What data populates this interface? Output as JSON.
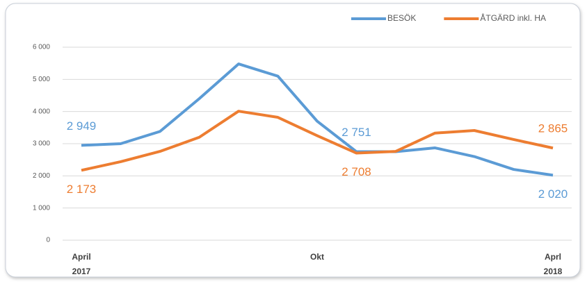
{
  "chart_data": {
    "type": "line",
    "categories": [
      "April",
      null,
      null,
      null,
      null,
      null,
      "Okt",
      null,
      null,
      null,
      null,
      null,
      "Aprl"
    ],
    "category_years": [
      "2017",
      null,
      null,
      null,
      null,
      null,
      null,
      null,
      null,
      null,
      null,
      null,
      "2018"
    ],
    "series": [
      {
        "name": "BESÖK",
        "color": "#5b9bd5",
        "values": [
          2949,
          3000,
          3380,
          4400,
          5480,
          5100,
          3700,
          2751,
          2751,
          2870,
          2600,
          2200,
          2020
        ],
        "value_labels": [
          "2 949",
          null,
          null,
          null,
          null,
          null,
          null,
          "2 751",
          null,
          null,
          null,
          null,
          "2 020"
        ]
      },
      {
        "name": "ÅTGÄRD inkl. HA",
        "color": "#ed7d31",
        "values": [
          2173,
          2440,
          2760,
          3200,
          4010,
          3820,
          3250,
          2708,
          2760,
          3330,
          3410,
          3130,
          2865
        ],
        "value_labels": [
          "2 173",
          null,
          null,
          null,
          null,
          null,
          null,
          "2 708",
          null,
          null,
          null,
          null,
          "2 865"
        ]
      }
    ],
    "ylim": [
      0,
      6000
    ],
    "yticks": [
      0,
      {
        "value": 1000,
        "label": "1 000"
      },
      {
        "value": 2000,
        "label": "2 000"
      },
      {
        "value": 3000,
        "label": "3 000"
      },
      {
        "value": 4000,
        "label": "4 000"
      },
      {
        "value": 5000,
        "label": "5 000"
      },
      {
        "value": 6000,
        "label": "6 000"
      }
    ],
    "grid": true,
    "legend": "top-right"
  }
}
